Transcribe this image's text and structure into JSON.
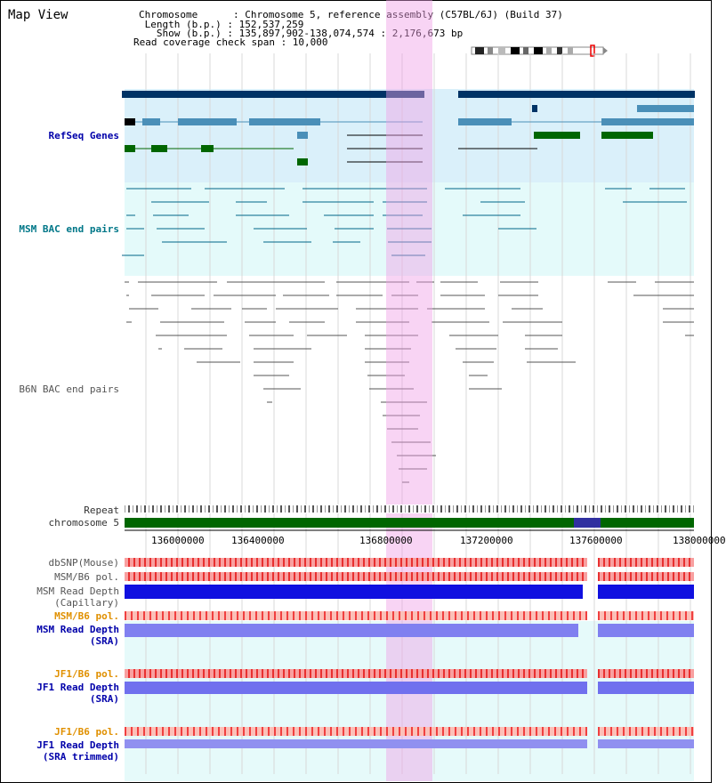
{
  "window": {
    "title": "Map View"
  },
  "header": {
    "chromosome_line": "Chromosome      : Chromosome 5, reference assembly (C57BL/6J) (Build 37)",
    "length_line": " Length (b.p.) : 152,537,259",
    "show_line": "   Show (b.p.) : 135,897,902-138,074,574 : 2,176,673 bp",
    "coverage_line": "Read coverage check span : 10,000"
  },
  "tracks": {
    "refseq": "RefSeq Genes",
    "msm_bac": "MSM BAC end pairs",
    "b6n_bac": "B6N BAC end pairs",
    "repeat": "Repeat",
    "chromosome": "chromosome 5",
    "dbsnp": "dbSNP(Mouse)",
    "msm_b6_pol": "MSM/B6 pol.",
    "msm_read_depth_cap_1": "MSM Read Depth",
    "msm_read_depth_cap_2": "(Capillary)",
    "msm_b6_pol_2": "MSM/B6 pol.",
    "msm_read_depth_sra_1": "MSM Read Depth",
    "msm_read_depth_sra_2": "(SRA)",
    "jf1_b6_pol": "JF1/B6 pol.",
    "jf1_read_depth_sra_1": "JF1 Read Depth",
    "jf1_read_depth_sra_2": "(SRA)",
    "jf1_b6_pol_2": "JF1/B6 pol.",
    "jf1_read_depth_trim_1": "JF1 Read Depth",
    "jf1_read_depth_trim_2": "(SRA trimmed)"
  },
  "axis": {
    "ticks": [
      "136000000",
      "136400000",
      "136800000",
      "137200000",
      "137600000",
      "138000000"
    ]
  },
  "colors": {
    "refseq_bg": "#daf0fa",
    "bac_bg": "#e4fafa",
    "highlight": "#f5d0f0",
    "gene_navy": "#003366",
    "gene_steel": "#4a8fb8",
    "gene_green": "#006600",
    "chromosome_bar": "#006600",
    "depth_blue": "#1010e0",
    "depth_light": "#8080f0"
  }
}
